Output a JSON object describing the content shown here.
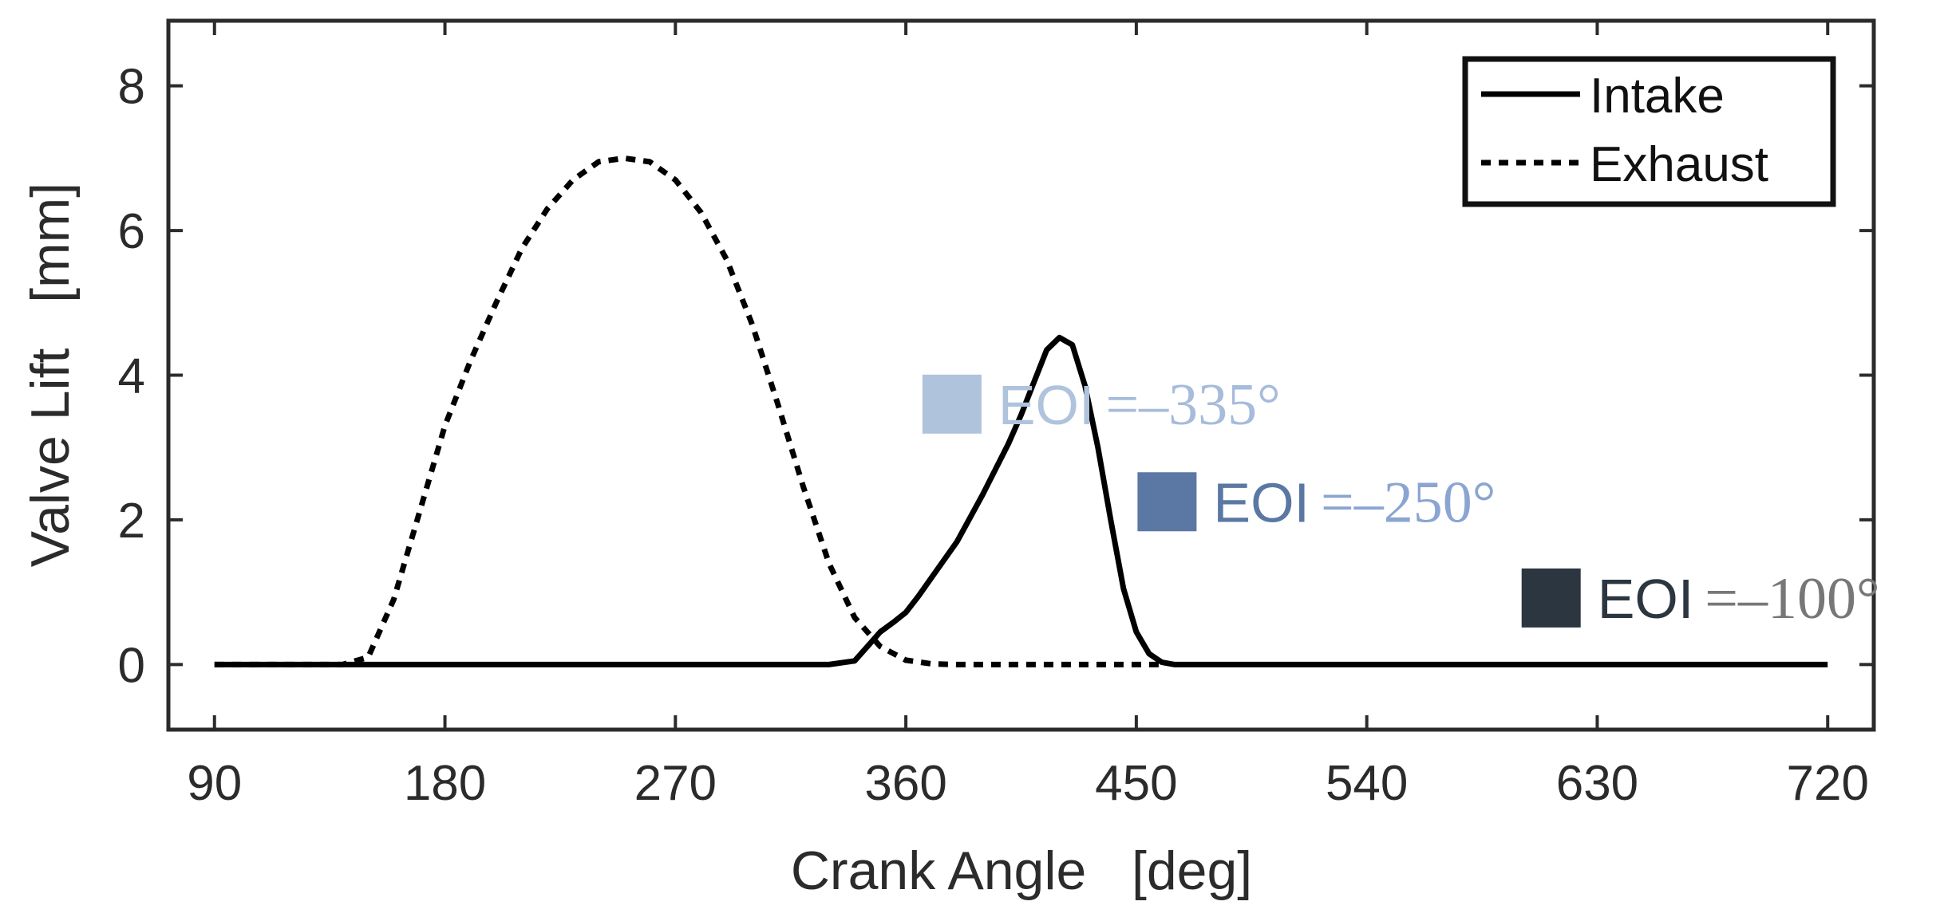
{
  "chart_data": {
    "type": "line",
    "title": "",
    "xlabel": "Crank Angle   [deg]",
    "ylabel": "Valve Lift   [mm]",
    "xlim": [
      72,
      738
    ],
    "ylim": [
      -0.9,
      8.9
    ],
    "xticks": [
      90,
      180,
      270,
      360,
      450,
      540,
      630,
      720
    ],
    "yticks": [
      0,
      2,
      4,
      6,
      8
    ],
    "grid": false,
    "legend_position": "top-right",
    "series": [
      {
        "name": "Intake",
        "style": "solid",
        "color": "#000000",
        "x": [
          90,
          330,
          340,
          345,
          350,
          355,
          360,
          365,
          370,
          380,
          390,
          400,
          405,
          410,
          415,
          420,
          425,
          430,
          435,
          440,
          445,
          450,
          455,
          460,
          465,
          720
        ],
        "y": [
          0,
          0,
          0.05,
          0.25,
          0.45,
          0.58,
          0.72,
          0.95,
          1.2,
          1.7,
          2.35,
          3.05,
          3.45,
          3.9,
          4.35,
          4.52,
          4.42,
          3.85,
          3.0,
          2.0,
          1.05,
          0.45,
          0.15,
          0.03,
          0,
          0
        ]
      },
      {
        "name": "Exhaust",
        "style": "dotted",
        "color": "#000000",
        "x": [
          90,
          140,
          150,
          160,
          170,
          180,
          190,
          200,
          210,
          220,
          230,
          240,
          250,
          260,
          270,
          280,
          290,
          300,
          310,
          320,
          330,
          340,
          350,
          360,
          370,
          380,
          460
        ],
        "y": [
          0,
          0,
          0.1,
          0.9,
          2.1,
          3.3,
          4.2,
          5.0,
          5.75,
          6.3,
          6.7,
          6.95,
          7.0,
          6.95,
          6.7,
          6.25,
          5.6,
          4.7,
          3.6,
          2.45,
          1.4,
          0.65,
          0.25,
          0.06,
          0.01,
          0,
          0
        ]
      }
    ],
    "annotations": [
      {
        "label": "EOI",
        "value_text": "=–335°",
        "color": "#b0c3dc",
        "value_color": "#a7bbdb",
        "x": 378,
        "y": 3.6
      },
      {
        "label": "EOI",
        "value_text": "=–250°",
        "color": "#5b77a3",
        "value_color": "#8ba5d2",
        "x": 462,
        "y": 2.25
      },
      {
        "label": "EOI",
        "value_text": "=–100°",
        "color": "#2b3640",
        "value_color": "#777777",
        "x": 612,
        "y": 0.92
      }
    ]
  }
}
